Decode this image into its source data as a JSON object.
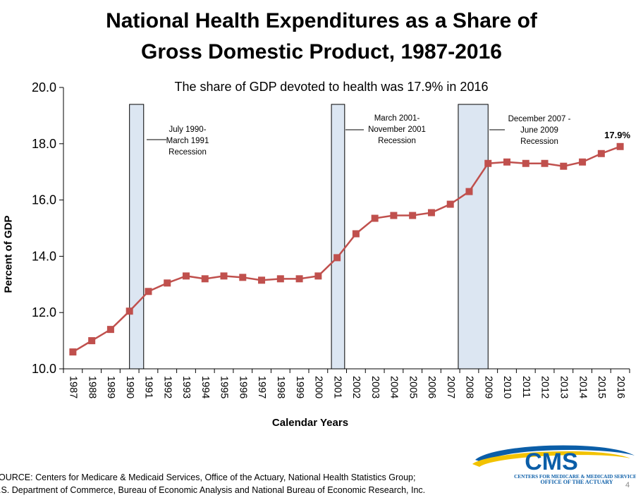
{
  "page": {
    "source_line1": "OURCE: Centers for Medicare & Medicaid Services, Office of the Actuary, National Health Statistics Group;",
    "source_line2": ".S. Department of Commerce, Bureau of Economic Analysis and National Bureau of Economic Research, Inc.",
    "page_number": "4",
    "logo": {
      "name": "CMS",
      "line1": "CENTERS FOR MEDICARE & MEDICAID SERVICES",
      "line2": "OFFICE OF THE ACTUARY"
    }
  },
  "chart_data": {
    "type": "line",
    "title_line1": "National Health Expenditures as a Share of",
    "title_line2": "Gross Domestic Product, 1987-2016",
    "subtitle": "The share of GDP devoted to health was 17.9% in 2016",
    "xlabel": "Calendar Years",
    "ylabel": "Percent of GDP",
    "ylim": [
      10.0,
      20.0
    ],
    "yticks": [
      "10.0",
      "12.0",
      "14.0",
      "16.0",
      "18.0",
      "20.0"
    ],
    "grid": false,
    "categories": [
      "1987",
      "1988",
      "1989",
      "1990",
      "1991",
      "1992",
      "1993",
      "1994",
      "1995",
      "1996",
      "1997",
      "1998",
      "1999",
      "2000",
      "2001",
      "2002",
      "2003",
      "2004",
      "2005",
      "2006",
      "2007",
      "2008",
      "2009",
      "2010",
      "2011",
      "2012",
      "2013",
      "2014",
      "2015",
      "2016"
    ],
    "series": [
      {
        "color": "#c0504d",
        "values": [
          10.6,
          11.0,
          11.4,
          12.05,
          12.75,
          13.05,
          13.3,
          13.2,
          13.3,
          13.25,
          13.15,
          13.2,
          13.2,
          13.3,
          13.95,
          14.8,
          15.35,
          15.45,
          15.45,
          15.55,
          15.85,
          16.3,
          17.3,
          17.35,
          17.3,
          17.3,
          17.2,
          17.35,
          17.65,
          17.9
        ]
      }
    ],
    "last_point_label": "17.9%",
    "recessions": [
      {
        "start": 1990.5,
        "end": 1991.25,
        "label_lines": [
          "July 1990-",
          "March 1991",
          "Recession"
        ]
      },
      {
        "start": 2001.2,
        "end": 2001.9,
        "label_lines": [
          "March 2001-",
          "November 2001",
          "Recession"
        ]
      },
      {
        "start": 2007.92,
        "end": 2009.5,
        "label_lines": [
          "December 2007 -",
          "June 2009",
          "Recession"
        ]
      }
    ],
    "recession_fill": "#dce6f2"
  }
}
